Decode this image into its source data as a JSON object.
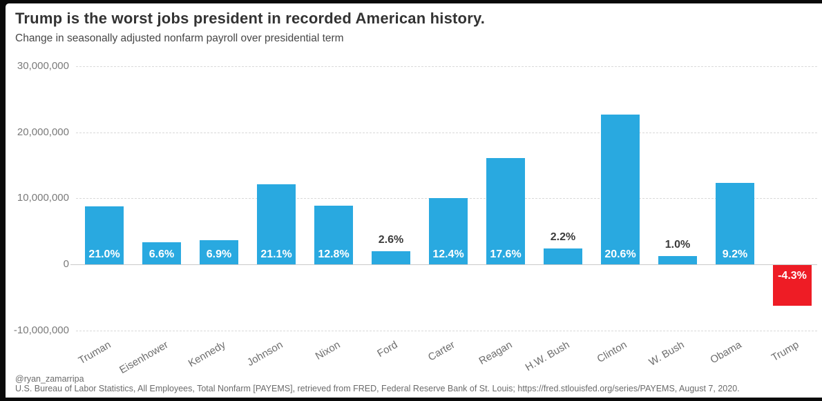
{
  "header": {
    "title": "Trump is the worst jobs president in recorded American history.",
    "subtitle": "Change in seasonally adjusted nonfarm payroll over presidential term"
  },
  "chart_data": {
    "type": "bar",
    "title": "Trump is the worst jobs president in recorded American history.",
    "subtitle": "Change in seasonally adjusted nonfarm payroll over presidential term",
    "categories": [
      "Truman",
      "Eisenhower",
      "Kennedy",
      "Johnson",
      "Nixon",
      "Ford",
      "Carter",
      "Reagan",
      "H.W. Bush",
      "Clinton",
      "W. Bush",
      "Obama",
      "Trump"
    ],
    "values": [
      8800000,
      3300000,
      3700000,
      12100000,
      8900000,
      2000000,
      10000000,
      16100000,
      2400000,
      22700000,
      1300000,
      12300000,
      -6200000
    ],
    "bar_labels": [
      "21.0%",
      "6.6%",
      "6.9%",
      "21.1%",
      "12.8%",
      "2.6%",
      "12.4%",
      "17.6%",
      "2.2%",
      "20.6%",
      "1.0%",
      "9.2%",
      "-4.3%"
    ],
    "label_placement": [
      "inside-bottom",
      "inside-bottom",
      "inside-bottom",
      "inside-bottom",
      "inside-bottom",
      "above",
      "inside-bottom",
      "inside-bottom",
      "above",
      "inside-bottom",
      "above",
      "inside-bottom",
      "inside-top"
    ],
    "xlabel": "",
    "ylabel": "",
    "ylim": [
      -10000000,
      30000000
    ],
    "yticks": [
      {
        "value": 30000000,
        "label": "30,000,000"
      },
      {
        "value": 20000000,
        "label": "20,000,000"
      },
      {
        "value": 10000000,
        "label": "10,000,000"
      },
      {
        "value": 0,
        "label": "0"
      },
      {
        "value": -10000000,
        "label": "-10,000,000"
      }
    ],
    "grid": "horizontal-dashed",
    "legend": "none",
    "colors": {
      "positive_bar": "#29a9e0",
      "negative_bar": "#ee1c25",
      "inside_label": "#ffffff",
      "outside_label": "#3b3b3b"
    }
  },
  "footer": {
    "handle": "@ryan_zamarripa",
    "source": "U.S. Bureau of Labor Statistics, All Employees, Total Nonfarm [PAYEMS], retrieved from FRED, Federal Reserve Bank of St. Louis; https://fred.stlouisfed.org/series/PAYEMS, August 7, 2020."
  }
}
